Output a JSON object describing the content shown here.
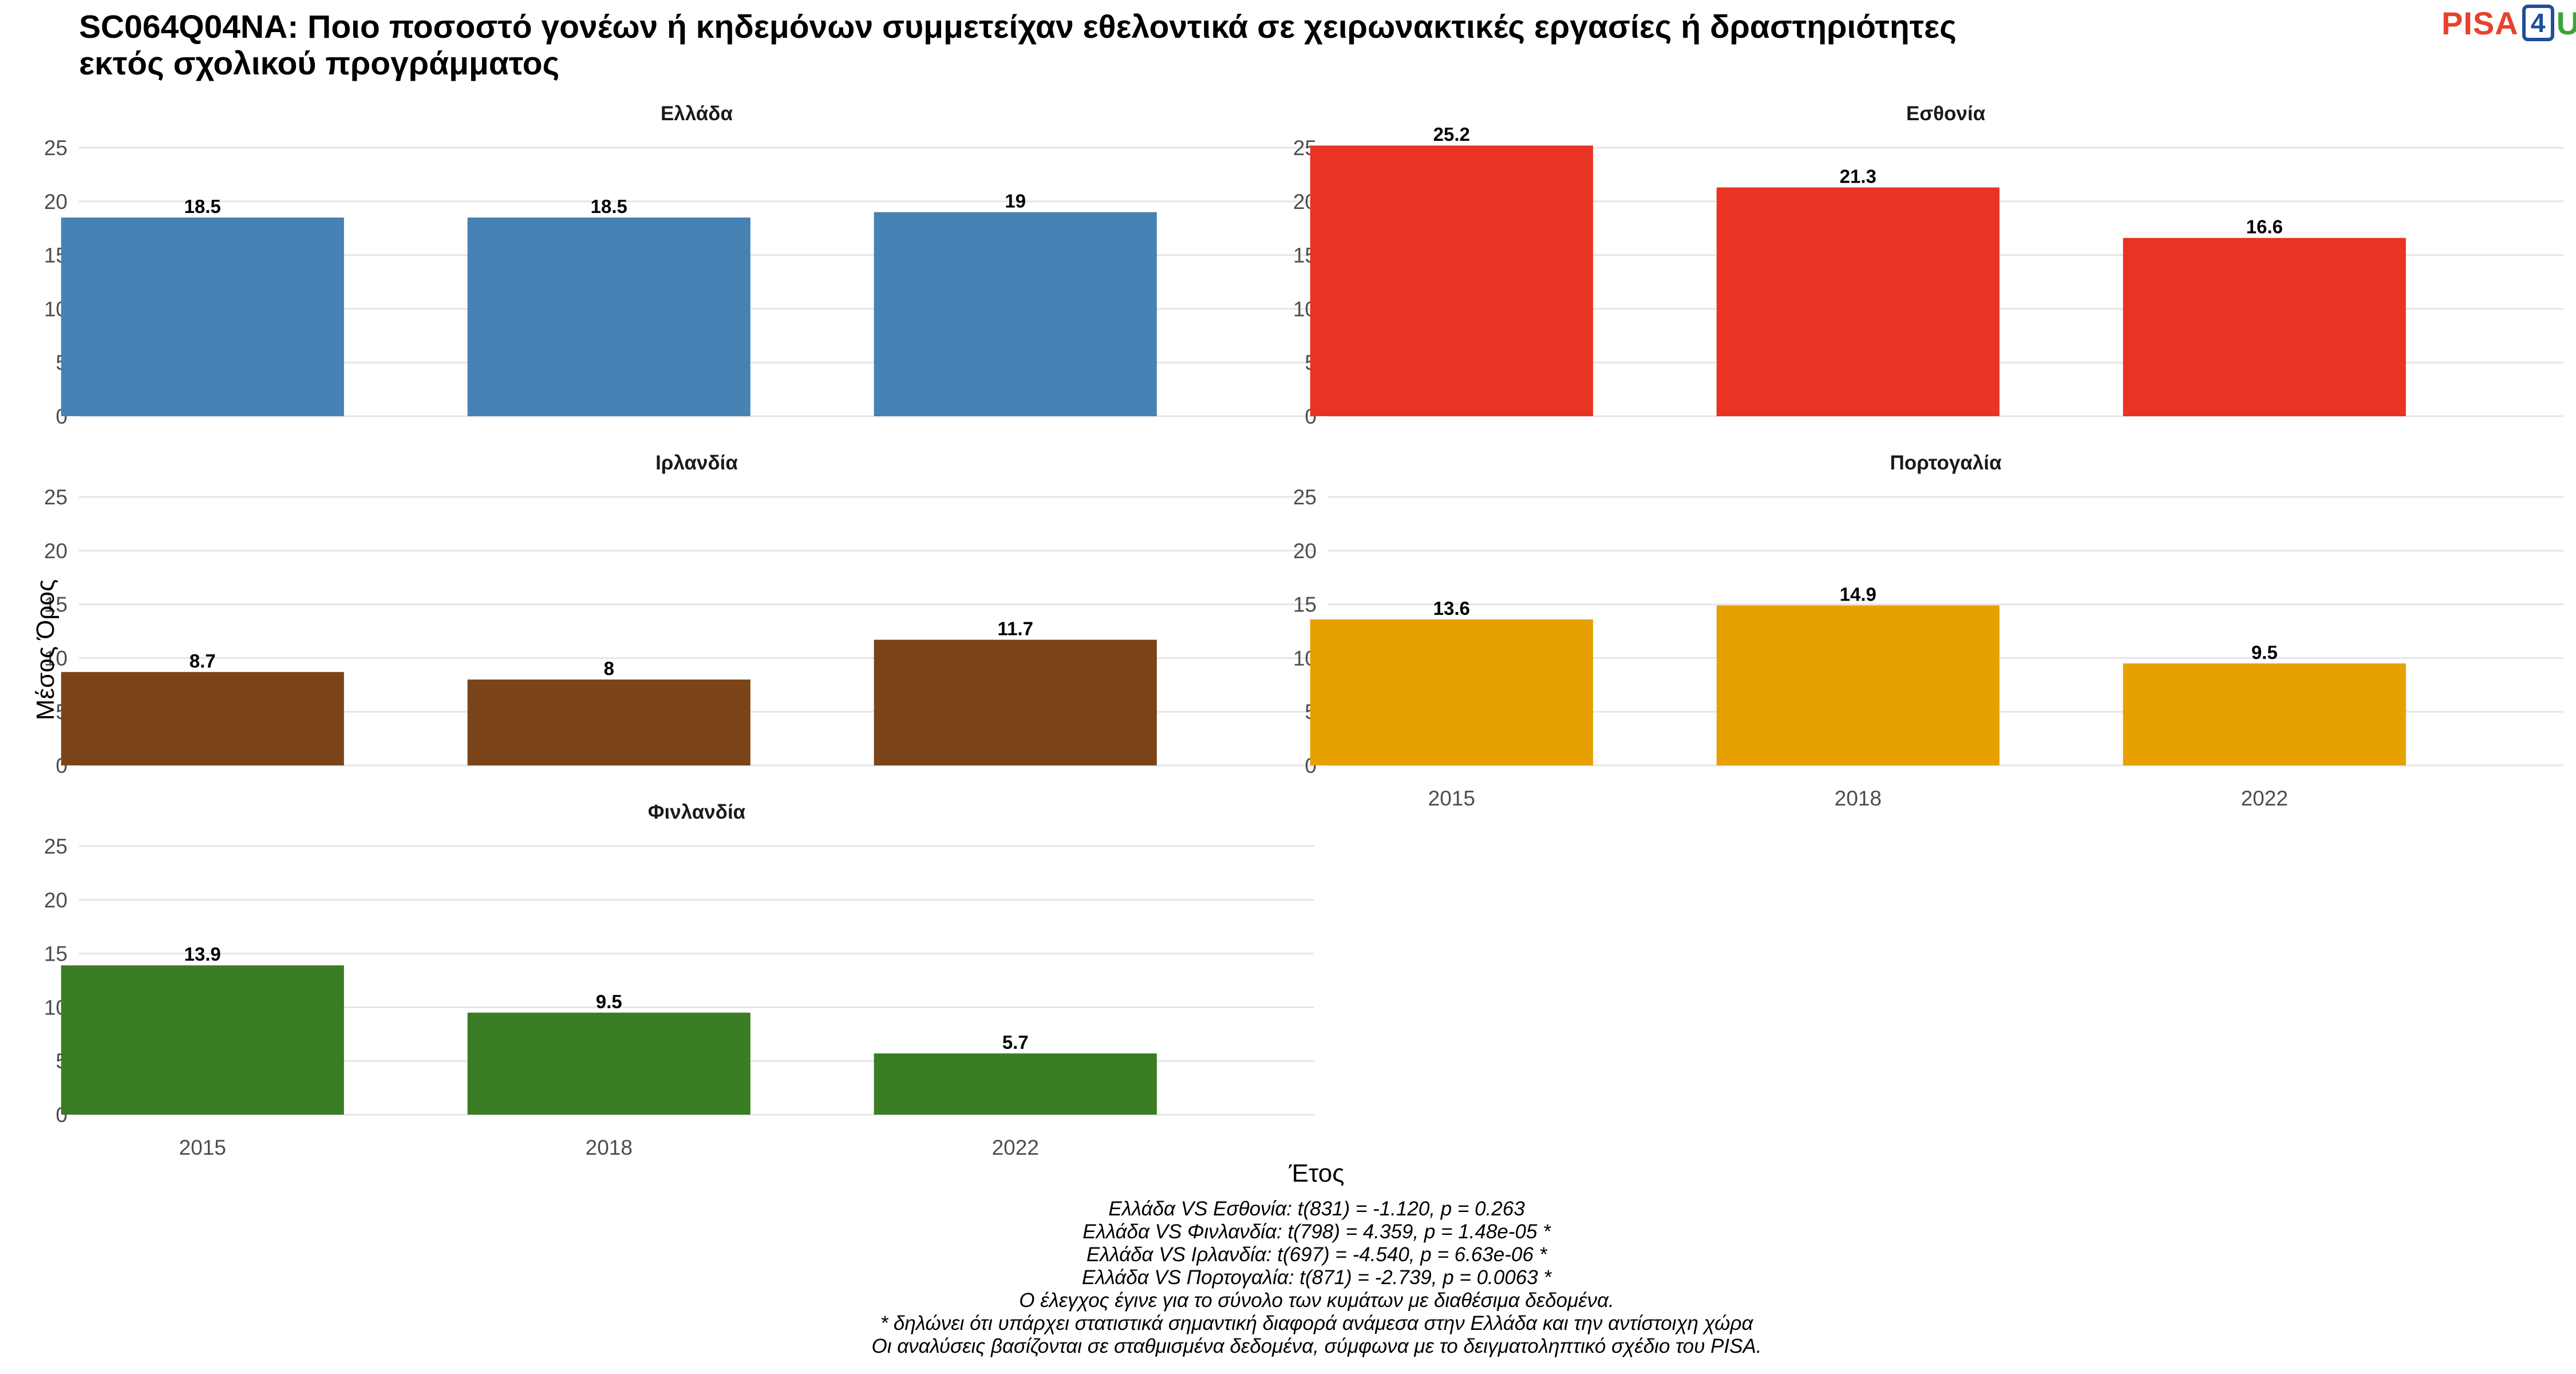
{
  "title": {
    "line1": "SC064Q04NA: Ποιο ποσοστό γονέων ή κηδεμόνων συμμετείχαν εθελοντικά σε χειρωνακτικές εργασίες ή δραστηριότητες",
    "line2": "εκτός σχολικού προγράμματος"
  },
  "logo": {
    "pisa": "PISA",
    "four": "4",
    "u": "U"
  },
  "chart_data": {
    "type": "bar",
    "layout": "facets",
    "categories": [
      "2015",
      "2018",
      "2022"
    ],
    "xlabel": "Έτος",
    "ylabel": "Μέσος Όρος",
    "ylim": [
      0,
      25
    ],
    "yticks": [
      0,
      5,
      10,
      15,
      20,
      25
    ],
    "grid": true,
    "series": [
      {
        "name": "Ελλάδα",
        "color": "#4682B4",
        "values": [
          18.5,
          18.5,
          19
        ]
      },
      {
        "name": "Εσθονία",
        "color": "#E93323",
        "values": [
          25.2,
          21.3,
          16.6
        ]
      },
      {
        "name": "Ιρλανδία",
        "color": "#7B4418",
        "values": [
          8.7,
          8,
          11.7
        ]
      },
      {
        "name": "Πορτογαλία",
        "color": "#E6A000",
        "values": [
          13.6,
          14.9,
          9.5
        ]
      },
      {
        "name": "Φινλανδία",
        "color": "#3A7D24",
        "values": [
          13.9,
          9.5,
          5.7
        ]
      }
    ],
    "data_labels": [
      [
        "18.5",
        "18.5",
        "19"
      ],
      [
        "25.2",
        "21.3",
        "16.6"
      ],
      [
        "8.7",
        "8",
        "11.7"
      ],
      [
        "13.6",
        "14.9",
        "9.5"
      ],
      [
        "13.9",
        "9.5",
        "5.7"
      ]
    ]
  },
  "footnotes": [
    "Ελλάδα VS Εσθονία: t(831) = -1.120, p = 0.263",
    "Ελλάδα VS Φινλανδία: t(798) = 4.359, p = 1.48e-05 *",
    "Ελλάδα VS Ιρλανδία: t(697) = -4.540, p = 6.63e-06 *",
    "Ελλάδα VS Πορτογαλία: t(871) = -2.739, p = 0.0063 *",
    "Ο έλεγχος έγινε για το σύνολο των κυμάτων με διαθέσιμα δεδομένα.",
    "* δηλώνει ότι υπάρχει στατιστικά σημαντική διαφορά ανάμεσα στην Ελλάδα και την αντίστοιχη χώρα",
    "Οι αναλύσεις βασίζονται σε σταθμισμένα δεδομένα, σύμφωνα με το δειγματοληπτικό σχέδιο του PISA."
  ]
}
